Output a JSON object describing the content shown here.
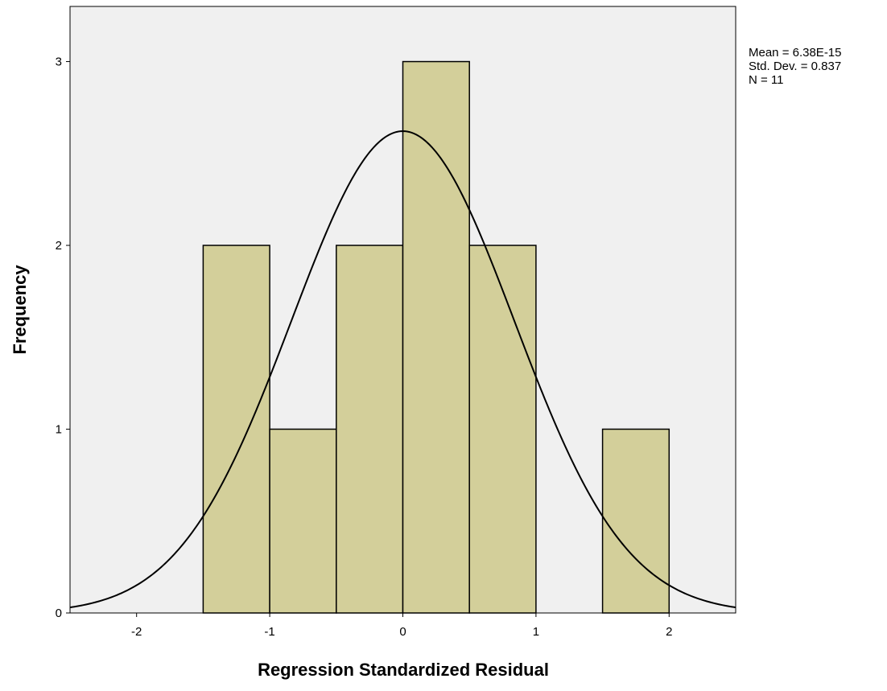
{
  "chart_data": {
    "type": "bar",
    "histogram": true,
    "bins": [
      {
        "x0": -1.5,
        "x1": -1.0,
        "count": 2
      },
      {
        "x0": -1.0,
        "x1": -0.5,
        "count": 1
      },
      {
        "x0": -0.5,
        "x1": 0.0,
        "count": 2
      },
      {
        "x0": 0.0,
        "x1": 0.5,
        "count": 3
      },
      {
        "x0": 0.5,
        "x1": 1.0,
        "count": 2
      },
      {
        "x0": 1.5,
        "x1": 2.0,
        "count": 1
      }
    ],
    "normal_curve": {
      "mean": 0,
      "std": 0.837,
      "n": 11,
      "bin_width": 0.5
    },
    "xlabel": "Regression Standardized Residual",
    "ylabel": "Frequency",
    "xlim": [
      -2.5,
      2.5
    ],
    "ylim": [
      0,
      3.3
    ],
    "xticks": [
      -2,
      -1,
      0,
      1,
      2
    ],
    "yticks": [
      0,
      1,
      2,
      3
    ],
    "grid": false,
    "stats": [
      "Mean = 6.38E-15",
      "Std. Dev. = 0.837",
      "N = 11"
    ],
    "colors": {
      "bar_fill": "#d3cf9a",
      "bar_stroke": "#000000",
      "plot_background": "#f0f0f0",
      "curve": "#000000"
    }
  }
}
